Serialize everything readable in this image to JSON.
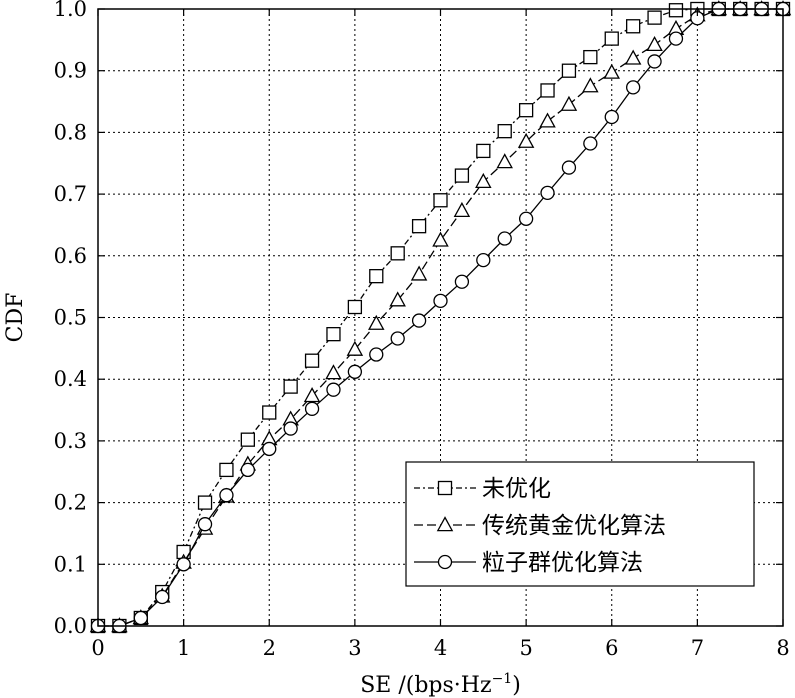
{
  "chart_data": {
    "type": "line",
    "xlabel": "SE /(bps·Hz",
    "xlabel_sup": "−1",
    "xlabel_tail": ")",
    "ylabel": "CDF",
    "xlim": [
      0,
      8
    ],
    "ylim": [
      0,
      1.0
    ],
    "x_ticks": [
      "0",
      "1",
      "2",
      "3",
      "4",
      "5",
      "6",
      "7",
      "8"
    ],
    "y_ticks": [
      "0.0",
      "0.1",
      "0.2",
      "0.3",
      "0.4",
      "0.5",
      "0.6",
      "0.7",
      "0.8",
      "0.9",
      "1.0"
    ],
    "grid": true,
    "legend_position": "bottom-right",
    "x": [
      0,
      0.25,
      0.5,
      0.75,
      1.0,
      1.25,
      1.5,
      1.75,
      2.0,
      2.25,
      2.5,
      2.75,
      3.0,
      3.25,
      3.5,
      3.75,
      4.0,
      4.25,
      4.5,
      4.75,
      5.0,
      5.25,
      5.5,
      5.75,
      6.0,
      6.25,
      6.5,
      6.75,
      7.0,
      7.25,
      7.5,
      7.75,
      8.0
    ],
    "series": [
      {
        "name": "未优化",
        "marker": "square",
        "dash": "dashdot",
        "values": [
          0.0,
          0.0,
          0.013,
          0.055,
          0.12,
          0.2,
          0.253,
          0.302,
          0.346,
          0.388,
          0.43,
          0.473,
          0.517,
          0.567,
          0.604,
          0.648,
          0.69,
          0.73,
          0.77,
          0.802,
          0.836,
          0.868,
          0.9,
          0.922,
          0.952,
          0.972,
          0.986,
          0.998,
          1.0,
          1.0,
          1.0,
          1.0,
          1.0
        ]
      },
      {
        "name": "传统黄金优化算法",
        "marker": "triangle",
        "dash": "dashed",
        "values": [
          0.0,
          0.0,
          0.013,
          0.048,
          0.103,
          0.158,
          0.21,
          0.262,
          0.303,
          0.335,
          0.373,
          0.41,
          0.448,
          0.49,
          0.528,
          0.57,
          0.625,
          0.673,
          0.72,
          0.752,
          0.785,
          0.818,
          0.845,
          0.875,
          0.897,
          0.92,
          0.942,
          0.968,
          0.99,
          1.0,
          1.0,
          1.0,
          1.0
        ]
      },
      {
        "name": "粒子群优化算法",
        "marker": "circle",
        "dash": "solid",
        "values": [
          0.0,
          0.0,
          0.013,
          0.047,
          0.1,
          0.165,
          0.212,
          0.253,
          0.287,
          0.32,
          0.352,
          0.383,
          0.412,
          0.44,
          0.466,
          0.495,
          0.527,
          0.558,
          0.593,
          0.628,
          0.66,
          0.702,
          0.743,
          0.782,
          0.825,
          0.873,
          0.915,
          0.952,
          0.985,
          1.0,
          1.0,
          1.0,
          1.0
        ]
      }
    ]
  }
}
